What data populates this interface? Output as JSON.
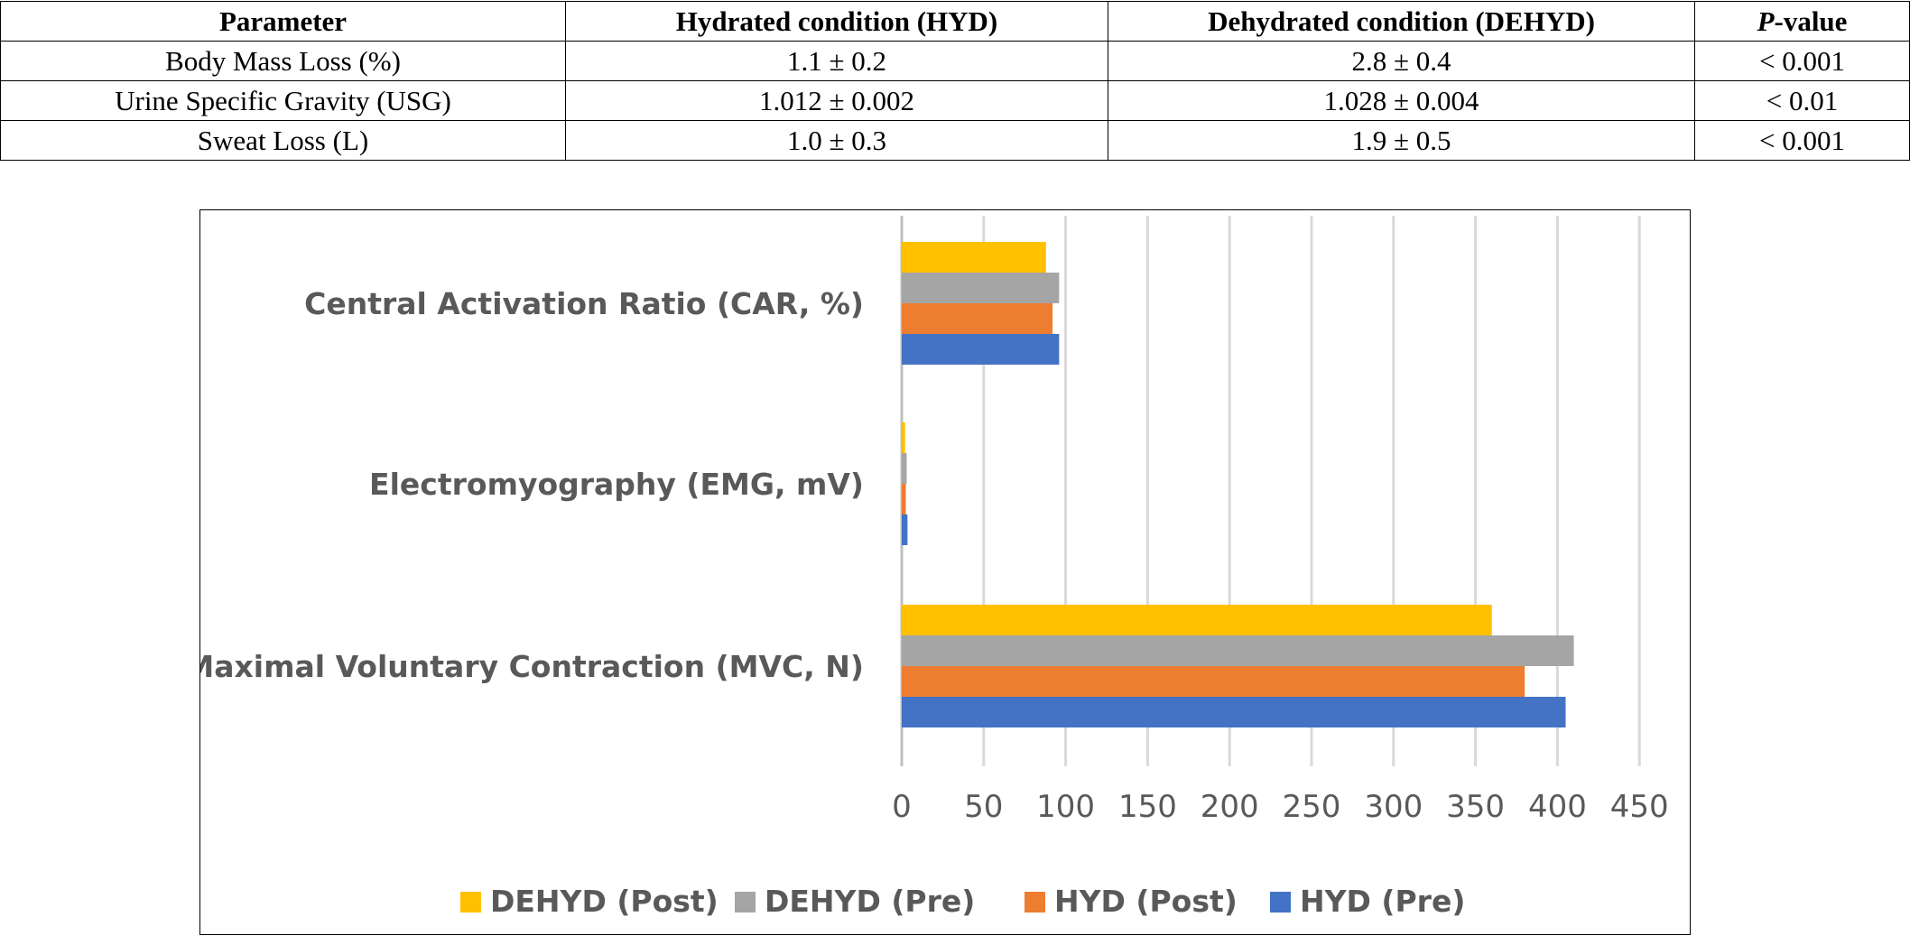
{
  "table": {
    "headers": [
      "Parameter",
      "Hydrated condition (HYD)",
      "Dehydrated condition (DEHYD)",
      "P-value"
    ],
    "pvalue_header": {
      "italic": "P",
      "rest": "-value"
    },
    "rows": [
      [
        "Body Mass Loss (%)",
        "1.1 ± 0.2",
        "2.8 ± 0.4",
        "< 0.001"
      ],
      [
        "Urine Specific Gravity (USG)",
        "1.012 ± 0.002",
        "1.028 ± 0.004",
        "< 0.01"
      ],
      [
        "Sweat Loss (L)",
        "1.0 ± 0.3",
        "1.9 ± 0.5",
        "< 0.001"
      ]
    ]
  },
  "chart_data": {
    "type": "bar",
    "orientation": "horizontal",
    "categories": [
      "Central Activation Ratio (CAR, %)",
      "Electromyography (EMG, mV)",
      "Maximal Voluntary Contraction (MVC, N)"
    ],
    "series": [
      {
        "name": "DEHYD (Post)",
        "color": "#FFC000",
        "values": [
          88,
          2,
          360
        ]
      },
      {
        "name": "DEHYD (Pre)",
        "color": "#A5A5A5",
        "values": [
          96,
          3,
          410
        ]
      },
      {
        "name": "HYD (Post)",
        "color": "#ED7D31",
        "values": [
          92,
          2.5,
          380
        ]
      },
      {
        "name": "HYD (Pre)",
        "color": "#4472C4",
        "values": [
          96,
          3.5,
          405
        ]
      }
    ],
    "xticks": [
      "0",
      "50",
      "100",
      "150",
      "200",
      "250",
      "300",
      "350",
      "400",
      "450"
    ],
    "xlim": [
      0,
      450
    ],
    "grid": true,
    "legend_position": "bottom",
    "title": "",
    "xlabel": "",
    "ylabel": ""
  }
}
